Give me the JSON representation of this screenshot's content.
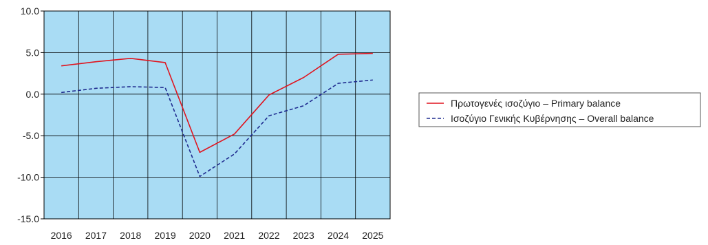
{
  "chart_data": {
    "type": "line",
    "title": "",
    "xlabel": "",
    "ylabel": "",
    "x": [
      "2016",
      "2017",
      "2018",
      "2019",
      "2020",
      "2021",
      "2022",
      "2023",
      "2024",
      "2025"
    ],
    "ylim": [
      -15.0,
      10.0
    ],
    "yticks": [
      "10.0",
      "5.0",
      "0.0",
      "-5.0",
      "-10.0",
      "-15.0"
    ],
    "grid": true,
    "legend_position": "right",
    "plot_background": "#a9dcf4",
    "series": [
      {
        "name": "Πρωτογενές ισοζύγιο – Primary balance",
        "color": "#e0141e",
        "style": "solid",
        "values": [
          3.4,
          3.9,
          4.3,
          3.8,
          -7.0,
          -4.8,
          -0.1,
          2.0,
          4.8,
          4.9
        ]
      },
      {
        "name": "Ισοζύγιο Γενικής Κυβέρνησης – Overall balance",
        "color": "#1f2b8f",
        "style": "dashed",
        "values": [
          0.2,
          0.7,
          0.9,
          0.8,
          -9.9,
          -7.2,
          -2.6,
          -1.4,
          1.3,
          1.7
        ]
      }
    ]
  }
}
